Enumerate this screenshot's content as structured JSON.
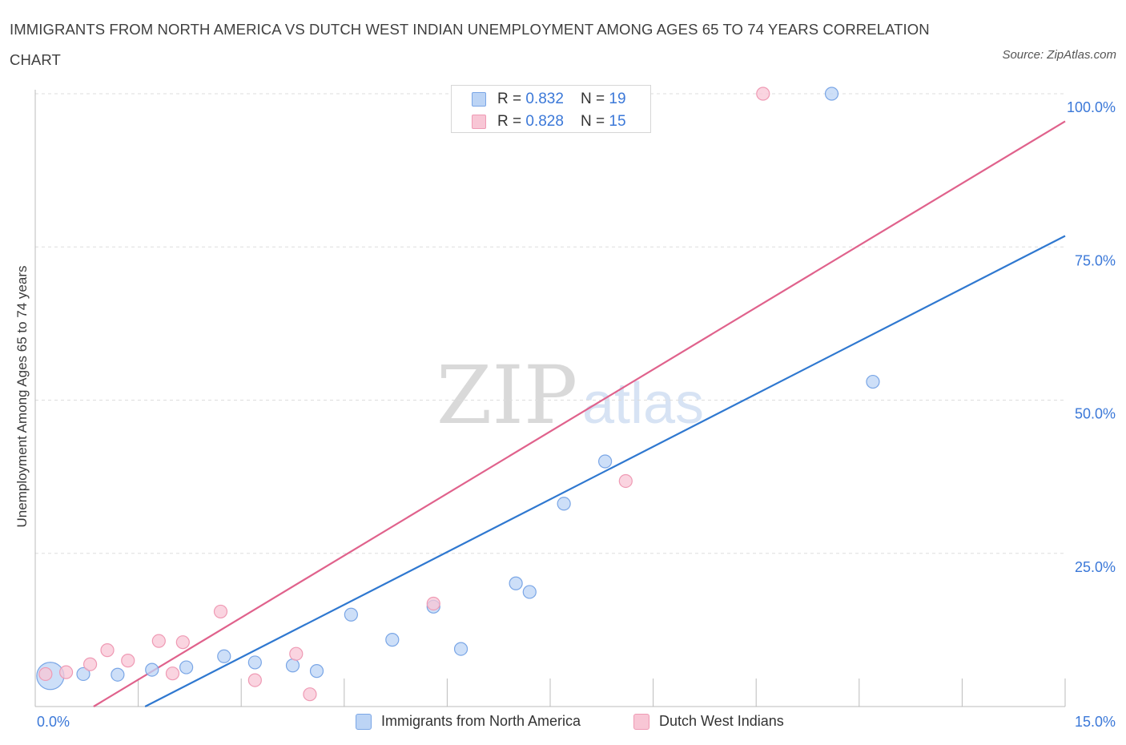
{
  "title": "IMMIGRANTS FROM NORTH AMERICA VS DUTCH WEST INDIAN UNEMPLOYMENT AMONG AGES 65 TO 74 YEARS CORRELATION CHART",
  "source": "Source: ZipAtlas.com",
  "watermark": {
    "zip": "ZIP",
    "atlas": "atlas"
  },
  "stats": [
    {
      "r_label": "R = ",
      "r_value": "0.832",
      "n_label": "N = ",
      "n_value": "19"
    },
    {
      "r_label": "R = ",
      "r_value": "0.828",
      "n_label": "N = ",
      "n_value": "15"
    }
  ],
  "colors": {
    "blue_fill": "#bcd4f5",
    "blue_stroke": "#7aa6e6",
    "blue_line": "#2f78d0",
    "pink_fill": "#f8c6d5",
    "pink_stroke": "#ef9ab4",
    "pink_line": "#e0628c",
    "tick_text": "#3b78d8",
    "grid": "#dddddd"
  },
  "chart_data": {
    "type": "scatter",
    "title": "IMMIGRANTS FROM NORTH AMERICA VS DUTCH WEST INDIAN UNEMPLOYMENT AMONG AGES 65 TO 74 YEARS CORRELATION CHART",
    "xlabel": "",
    "ylabel": "Unemployment Among Ages 65 to 74 years",
    "xlim": [
      0,
      15
    ],
    "ylim": [
      0,
      100
    ],
    "x_tick_labels": [
      "0.0%",
      "15.0%"
    ],
    "y_ticks": [
      25,
      50,
      75,
      100
    ],
    "y_tick_labels": [
      "25.0%",
      "50.0%",
      "75.0%",
      "100.0%"
    ],
    "grid": true,
    "legend_position": "bottom-center",
    "series": [
      {
        "name": "Immigrants from North America",
        "color": "blue",
        "points": [
          {
            "x": 0.22,
            "y": 5.0,
            "size": "large"
          },
          {
            "x": 0.7,
            "y": 5.3
          },
          {
            "x": 1.2,
            "y": 5.2
          },
          {
            "x": 1.7,
            "y": 6.0
          },
          {
            "x": 2.2,
            "y": 6.4
          },
          {
            "x": 2.75,
            "y": 8.2
          },
          {
            "x": 3.2,
            "y": 7.2
          },
          {
            "x": 3.75,
            "y": 6.7
          },
          {
            "x": 4.1,
            "y": 5.8
          },
          {
            "x": 4.6,
            "y": 15.0
          },
          {
            "x": 5.2,
            "y": 10.9
          },
          {
            "x": 5.8,
            "y": 16.3
          },
          {
            "x": 6.2,
            "y": 9.4
          },
          {
            "x": 7.0,
            "y": 20.1
          },
          {
            "x": 7.2,
            "y": 18.7
          },
          {
            "x": 7.7,
            "y": 33.1
          },
          {
            "x": 8.3,
            "y": 40.0
          },
          {
            "x": 11.6,
            "y": 100.0
          },
          {
            "x": 12.2,
            "y": 53.0
          }
        ],
        "trendline": {
          "x": [
            1.6,
            15.0
          ],
          "y": [
            0.0,
            76.8
          ]
        }
      },
      {
        "name": "Dutch West Indians",
        "color": "pink",
        "points": [
          {
            "x": 0.15,
            "y": 5.3
          },
          {
            "x": 0.45,
            "y": 5.6
          },
          {
            "x": 0.8,
            "y": 6.9
          },
          {
            "x": 1.05,
            "y": 9.2
          },
          {
            "x": 1.35,
            "y": 7.5
          },
          {
            "x": 1.8,
            "y": 10.7
          },
          {
            "x": 2.0,
            "y": 5.4
          },
          {
            "x": 2.15,
            "y": 10.5
          },
          {
            "x": 2.7,
            "y": 15.5
          },
          {
            "x": 3.2,
            "y": 4.3
          },
          {
            "x": 3.8,
            "y": 8.6
          },
          {
            "x": 4.0,
            "y": 2.0
          },
          {
            "x": 5.8,
            "y": 16.8
          },
          {
            "x": 8.6,
            "y": 36.8
          },
          {
            "x": 10.6,
            "y": 100.0
          }
        ],
        "trendline": {
          "x": [
            0.85,
            15.0
          ],
          "y": [
            0.0,
            95.5
          ]
        }
      }
    ]
  }
}
